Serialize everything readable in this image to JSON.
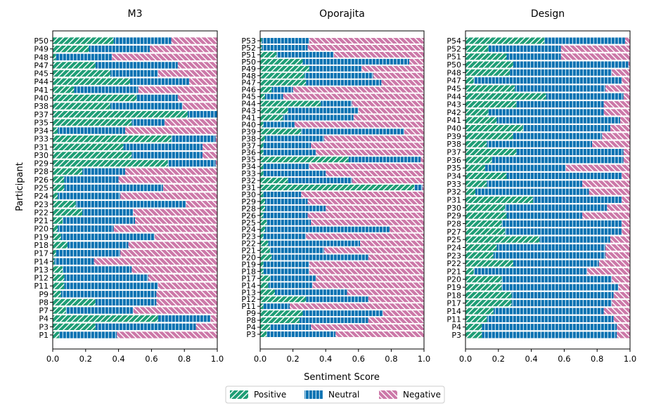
{
  "figure": {
    "ylabel": "Participant",
    "xlabel": "Sentiment Score",
    "legend": {
      "placement": "bottom-center",
      "items": [
        "Positive",
        "Neutral",
        "Negative"
      ]
    },
    "colors": {
      "Positive": "#1f9e76",
      "Neutral": "#0a72b2",
      "Negative": "#cc78a8"
    }
  },
  "chart_data": [
    {
      "type": "bar",
      "orientation": "horizontal",
      "stacked": true,
      "title": "M3",
      "xlim": [
        0,
        1
      ],
      "xticks": [
        "0.0",
        "0.2",
        "0.4",
        "0.6",
        "0.8",
        "1.0"
      ],
      "categories": [
        "P50",
        "P49",
        "P48",
        "P47",
        "P45",
        "P44",
        "P41",
        "P40",
        "P38",
        "P37",
        "P35",
        "P34",
        "P33",
        "P31",
        "P30",
        "P29",
        "P28",
        "P26",
        "P25",
        "P24",
        "P23",
        "P22",
        "P21",
        "P20",
        "P19",
        "P18",
        "P17",
        "P14",
        "P13",
        "P12",
        "P11",
        "P9",
        "P8",
        "P7",
        "P4",
        "P3",
        "P1"
      ],
      "series": [
        {
          "name": "Positive",
          "values": [
            0.37,
            0.22,
            0.02,
            0.26,
            0.35,
            0.47,
            0.13,
            0.51,
            0.35,
            0.82,
            0.48,
            0.03,
            0.72,
            0.43,
            0.48,
            0.7,
            0.18,
            0.07,
            0.07,
            0.03,
            0.14,
            0.18,
            0.06,
            0.03,
            0.05,
            0.09,
            0.02,
            0.01,
            0.06,
            0.07,
            0.07,
            0.05,
            0.26,
            0.08,
            0.64,
            0.26,
            0.04
          ]
        },
        {
          "name": "Neutral",
          "values": [
            0.35,
            0.37,
            0.34,
            0.5,
            0.29,
            0.36,
            0.39,
            0.25,
            0.44,
            0.18,
            0.2,
            0.41,
            0.27,
            0.48,
            0.43,
            0.29,
            0.26,
            0.33,
            0.6,
            0.38,
            0.67,
            0.31,
            0.44,
            0.34,
            0.57,
            0.37,
            0.39,
            0.24,
            0.42,
            0.51,
            0.57,
            0.58,
            0.37,
            0.41,
            0.32,
            0.61,
            0.35
          ]
        },
        {
          "name": "Negative",
          "values": [
            0.28,
            0.41,
            0.64,
            0.24,
            0.36,
            0.17,
            0.48,
            0.24,
            0.21,
            0.0,
            0.32,
            0.56,
            0.01,
            0.09,
            0.09,
            0.01,
            0.56,
            0.6,
            0.33,
            0.59,
            0.19,
            0.51,
            0.5,
            0.63,
            0.38,
            0.54,
            0.59,
            0.75,
            0.52,
            0.42,
            0.36,
            0.37,
            0.37,
            0.51,
            0.04,
            0.13,
            0.61
          ]
        }
      ]
    },
    {
      "type": "bar",
      "orientation": "horizontal",
      "stacked": true,
      "title": "Oporajita",
      "xlim": [
        0,
        1
      ],
      "xticks": [
        "0.0",
        "0.2",
        "0.4",
        "0.6",
        "0.8",
        "1.0"
      ],
      "categories": [
        "P53",
        "P52",
        "P51",
        "P50",
        "P49",
        "P48",
        "P47",
        "P46",
        "P45",
        "P44",
        "P43",
        "P41",
        "P40",
        "P39",
        "P38",
        "P37",
        "P36",
        "P35",
        "P34",
        "P33",
        "P32",
        "P31",
        "P30",
        "P29",
        "P28",
        "P26",
        "P25",
        "P24",
        "P23",
        "P22",
        "P21",
        "P20",
        "P19",
        "P18",
        "P17",
        "P14",
        "P13",
        "P12",
        "P11",
        "P9",
        "P8",
        "P4",
        "P3"
      ],
      "series": [
        {
          "name": "Positive",
          "values": [
            0.01,
            0.01,
            0.1,
            0.26,
            0.3,
            0.27,
            0.28,
            0.07,
            0.03,
            0.37,
            0.17,
            0.14,
            0.02,
            0.25,
            0.03,
            0.02,
            0.02,
            0.54,
            0.02,
            0.02,
            0.17,
            0.94,
            0.02,
            0.03,
            0.03,
            0.02,
            0.04,
            0.03,
            0.02,
            0.05,
            0.06,
            0.07,
            0.02,
            0.02,
            0.06,
            0.05,
            0.09,
            0.28,
            0.02,
            0.26,
            0.24,
            0.06,
            0.04
          ]
        },
        {
          "name": "Neutral",
          "values": [
            0.29,
            0.28,
            0.35,
            0.65,
            0.32,
            0.42,
            0.46,
            0.13,
            0.11,
            0.19,
            0.43,
            0.43,
            0.19,
            0.63,
            0.36,
            0.29,
            0.32,
            0.44,
            0.28,
            0.38,
            0.39,
            0.05,
            0.23,
            0.26,
            0.37,
            0.27,
            0.27,
            0.76,
            0.26,
            0.56,
            0.33,
            0.59,
            0.28,
            0.28,
            0.28,
            0.27,
            0.44,
            0.38,
            0.16,
            0.49,
            0.42,
            0.25,
            0.42
          ]
        },
        {
          "name": "Negative",
          "values": [
            0.7,
            0.71,
            0.55,
            0.09,
            0.38,
            0.31,
            0.26,
            0.8,
            0.86,
            0.44,
            0.4,
            0.43,
            0.79,
            0.12,
            0.61,
            0.69,
            0.66,
            0.02,
            0.7,
            0.6,
            0.44,
            0.01,
            0.75,
            0.71,
            0.6,
            0.71,
            0.69,
            0.21,
            0.72,
            0.39,
            0.61,
            0.34,
            0.7,
            0.7,
            0.66,
            0.68,
            0.47,
            0.34,
            0.82,
            0.25,
            0.34,
            0.69,
            0.54
          ]
        }
      ]
    },
    {
      "type": "bar",
      "orientation": "horizontal",
      "stacked": true,
      "title": "Design",
      "xlim": [
        0,
        1
      ],
      "xticks": [
        "0.0",
        "0.2",
        "0.4",
        "0.6",
        "0.8",
        "1.0"
      ],
      "categories": [
        "P54",
        "P52",
        "P51",
        "P50",
        "P48",
        "P47",
        "P45",
        "P44",
        "P43",
        "P42",
        "P41",
        "P40",
        "P39",
        "P38",
        "P37",
        "P36",
        "P35",
        "P34",
        "P33",
        "P32",
        "P31",
        "P30",
        "P29",
        "P28",
        "P27",
        "P25",
        "P24",
        "P23",
        "P22",
        "P21",
        "P20",
        "P19",
        "P18",
        "P17",
        "P14",
        "P11",
        "P4",
        "P3"
      ],
      "series": [
        {
          "name": "Positive",
          "values": [
            0.48,
            0.14,
            0.25,
            0.29,
            0.27,
            0.05,
            0.3,
            0.49,
            0.31,
            0.14,
            0.19,
            0.35,
            0.29,
            0.13,
            0.31,
            0.16,
            0.12,
            0.25,
            0.13,
            0.06,
            0.41,
            0.24,
            0.25,
            0.22,
            0.24,
            0.45,
            0.19,
            0.17,
            0.29,
            0.05,
            0.22,
            0.22,
            0.28,
            0.28,
            0.17,
            0.13,
            0.1,
            0.1
          ]
        },
        {
          "name": "Neutral",
          "values": [
            0.49,
            0.44,
            0.33,
            0.7,
            0.62,
            0.9,
            0.55,
            0.47,
            0.53,
            0.7,
            0.75,
            0.53,
            0.54,
            0.64,
            0.65,
            0.8,
            0.49,
            0.7,
            0.58,
            0.69,
            0.54,
            0.62,
            0.46,
            0.73,
            0.71,
            0.43,
            0.66,
            0.68,
            0.52,
            0.69,
            0.67,
            0.71,
            0.62,
            0.61,
            0.67,
            0.77,
            0.82,
            0.82
          ]
        },
        {
          "name": "Negative",
          "values": [
            0.03,
            0.42,
            0.42,
            0.01,
            0.11,
            0.05,
            0.15,
            0.04,
            0.16,
            0.16,
            0.06,
            0.12,
            0.17,
            0.23,
            0.04,
            0.04,
            0.39,
            0.05,
            0.29,
            0.25,
            0.05,
            0.14,
            0.29,
            0.05,
            0.05,
            0.12,
            0.15,
            0.15,
            0.19,
            0.26,
            0.11,
            0.07,
            0.1,
            0.11,
            0.16,
            0.1,
            0.08,
            0.08
          ]
        }
      ]
    }
  ]
}
